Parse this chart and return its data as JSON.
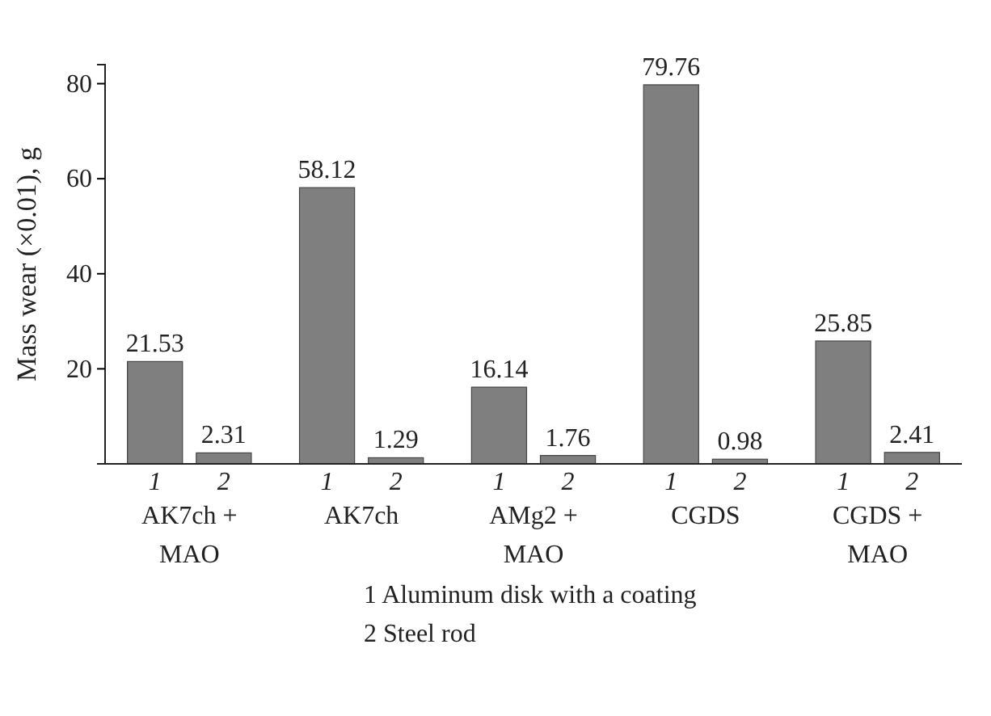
{
  "chart_data": {
    "type": "bar",
    "ylabel": "Mass wear (×0.01), g",
    "categories": [
      "AK7ch +\nMAO",
      "AK7ch",
      "AMg2 +\nMAO",
      "CGDS",
      "CGDS +\nMAO"
    ],
    "series": [
      {
        "name": "1",
        "color": "#7f7f7f",
        "values": [
          21.53,
          58.12,
          16.14,
          79.76,
          25.85
        ]
      },
      {
        "name": "2",
        "color": "#7f7f7f",
        "values": [
          2.31,
          1.29,
          1.76,
          0.98,
          2.41
        ]
      }
    ],
    "ylim": [
      0,
      84
    ],
    "yticks": [
      20,
      40,
      60,
      80
    ],
    "data_labels": true,
    "annotations": [
      "1  Aluminum disk with a coating",
      "2  Steel rod"
    ]
  }
}
